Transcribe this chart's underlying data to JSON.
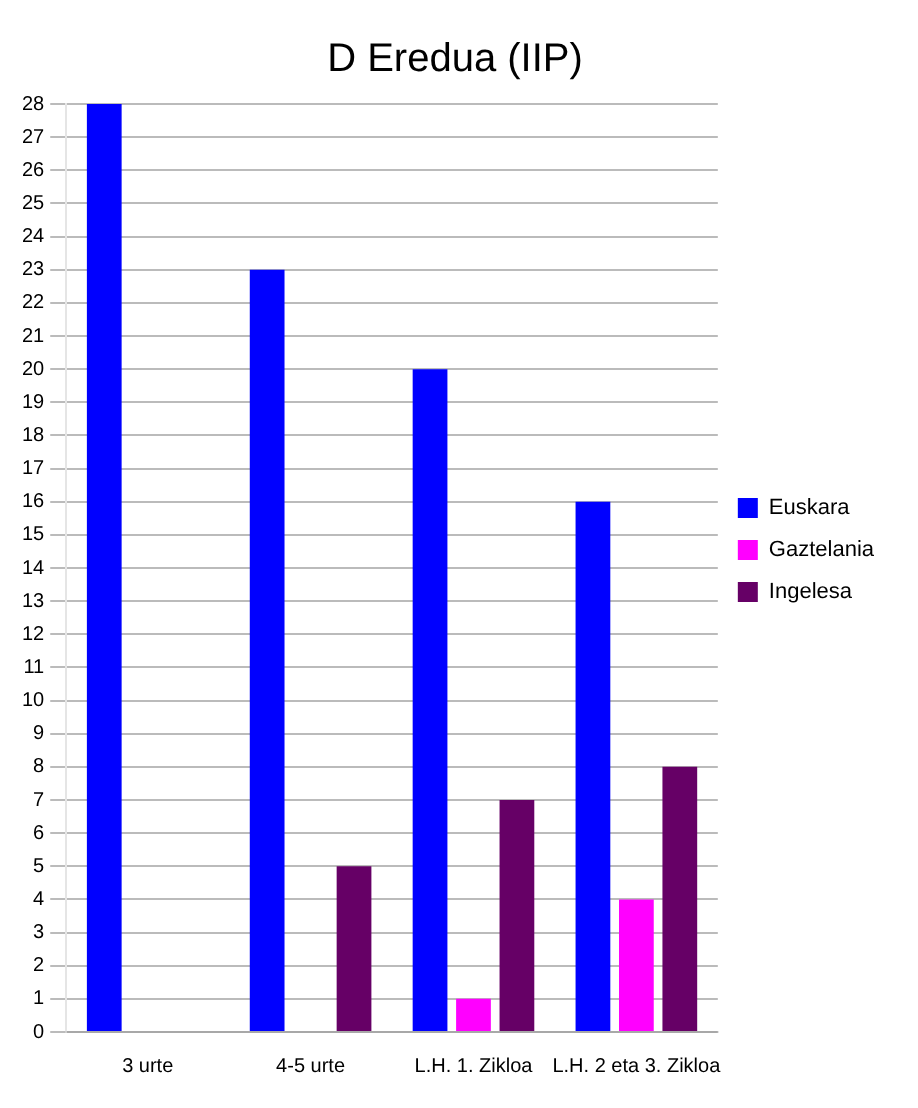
{
  "chart_data": {
    "type": "bar",
    "title": "D Eredua (IIP)",
    "categories": [
      "3 urte",
      "4-5 urte",
      "L.H. 1. Zikloa",
      "L.H. 2 eta 3. Zikloa"
    ],
    "series": [
      {
        "name": "Euskara",
        "color": "#0000ff",
        "values": [
          28,
          23,
          20,
          16
        ]
      },
      {
        "name": "Gaztelania",
        "color": "#ff00ff",
        "values": [
          0,
          0,
          1,
          4
        ]
      },
      {
        "name": "Ingelesa",
        "color": "#660066",
        "values": [
          0,
          5,
          7,
          8
        ]
      }
    ],
    "ylim": [
      0,
      28
    ],
    "yticks": [
      0,
      1,
      2,
      3,
      4,
      5,
      6,
      7,
      8,
      9,
      10,
      11,
      12,
      13,
      14,
      15,
      16,
      17,
      18,
      19,
      20,
      21,
      22,
      23,
      24,
      25,
      26,
      27,
      28
    ],
    "grid": "y",
    "legend": "right"
  }
}
